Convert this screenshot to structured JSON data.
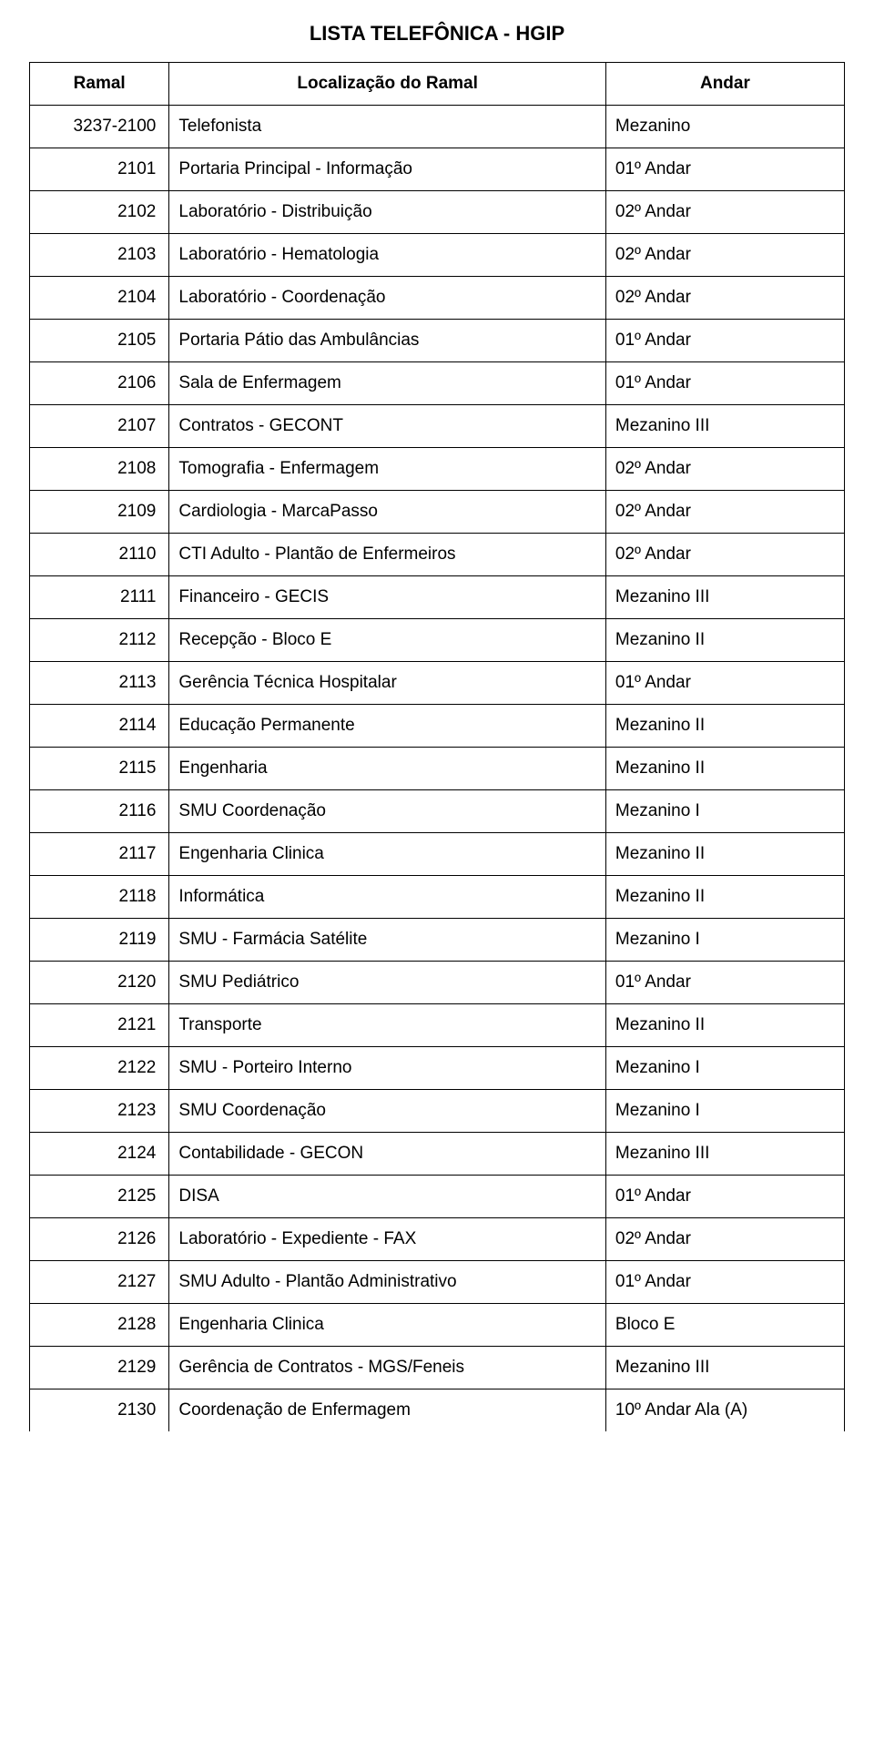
{
  "page": {
    "title": "LISTA TELEFÔNICA  - HGIP",
    "background_color": "#ffffff",
    "text_color": "#000000",
    "border_color": "#000000",
    "title_fontsize": 22,
    "cell_fontsize": 19,
    "font_family": "Arial"
  },
  "table": {
    "columns": [
      {
        "key": "ramal",
        "label": "Ramal",
        "width_pct": 16,
        "align": "right"
      },
      {
        "key": "localizacao",
        "label": "Localização do Ramal",
        "width_pct": 55,
        "align": "left"
      },
      {
        "key": "andar",
        "label": "Andar",
        "width_pct": 29,
        "align": "left"
      }
    ],
    "rows": [
      {
        "ramal": "3237-2100",
        "localizacao": "Telefonista",
        "andar": "Mezanino"
      },
      {
        "ramal": "2101",
        "localizacao": "Portaria Principal - Informação",
        "andar": "01º Andar"
      },
      {
        "ramal": "2102",
        "localizacao": "Laboratório - Distribuição",
        "andar": "02º Andar"
      },
      {
        "ramal": "2103",
        "localizacao": "Laboratório - Hematologia",
        "andar": "02º Andar"
      },
      {
        "ramal": "2104",
        "localizacao": "Laboratório - Coordenação",
        "andar": "02º Andar"
      },
      {
        "ramal": "2105",
        "localizacao": "Portaria Pátio das Ambulâncias",
        "andar": "01º Andar"
      },
      {
        "ramal": "2106",
        "localizacao": "Sala de Enfermagem",
        "andar": "01º Andar"
      },
      {
        "ramal": "2107",
        "localizacao": "Contratos - GECONT",
        "andar": "Mezanino III"
      },
      {
        "ramal": "2108",
        "localizacao": "Tomografia - Enfermagem",
        "andar": "02º Andar"
      },
      {
        "ramal": "2109",
        "localizacao": "Cardiologia - MarcaPasso",
        "andar": "02º Andar"
      },
      {
        "ramal": "2110",
        "localizacao": "CTI Adulto - Plantão de Enfermeiros",
        "andar": "02º Andar"
      },
      {
        "ramal": "2111",
        "localizacao": "Financeiro - GECIS",
        "andar": "Mezanino III"
      },
      {
        "ramal": "2112",
        "localizacao": "Recepção - Bloco E",
        "andar": "Mezanino II"
      },
      {
        "ramal": "2113",
        "localizacao": "Gerência Técnica Hospitalar",
        "andar": "01º Andar"
      },
      {
        "ramal": "2114",
        "localizacao": "Educação Permanente",
        "andar": "Mezanino II"
      },
      {
        "ramal": "2115",
        "localizacao": "Engenharia",
        "andar": "Mezanino II"
      },
      {
        "ramal": "2116",
        "localizacao": "SMU Coordenação",
        "andar": "Mezanino I"
      },
      {
        "ramal": "2117",
        "localizacao": "Engenharia Clinica",
        "andar": "Mezanino II"
      },
      {
        "ramal": "2118",
        "localizacao": "Informática",
        "andar": "Mezanino II"
      },
      {
        "ramal": "2119",
        "localizacao": "SMU - Farmácia Satélite",
        "andar": "Mezanino I"
      },
      {
        "ramal": "2120",
        "localizacao": "SMU Pediátrico",
        "andar": "01º Andar"
      },
      {
        "ramal": "2121",
        "localizacao": "Transporte",
        "andar": "Mezanino II"
      },
      {
        "ramal": "2122",
        "localizacao": "SMU - Porteiro Interno",
        "andar": "Mezanino I"
      },
      {
        "ramal": "2123",
        "localizacao": "SMU  Coordenação",
        "andar": "Mezanino I"
      },
      {
        "ramal": "2124",
        "localizacao": "Contabilidade - GECON",
        "andar": "Mezanino III"
      },
      {
        "ramal": "2125",
        "localizacao": "DISA",
        "andar": "01º Andar"
      },
      {
        "ramal": "2126",
        "localizacao": "Laboratório - Expediente - FAX",
        "andar": "02º Andar"
      },
      {
        "ramal": "2127",
        "localizacao": "SMU Adulto - Plantão Administrativo",
        "andar": "01º Andar"
      },
      {
        "ramal": "2128",
        "localizacao": "Engenharia Clinica",
        "andar": "Bloco E"
      },
      {
        "ramal": "2129",
        "localizacao": "Gerência de Contratos - MGS/Feneis",
        "andar": "Mezanino III"
      },
      {
        "ramal": "2130",
        "localizacao": "Coordenação de Enfermagem",
        "andar": "10º Andar Ala (A)"
      }
    ]
  }
}
